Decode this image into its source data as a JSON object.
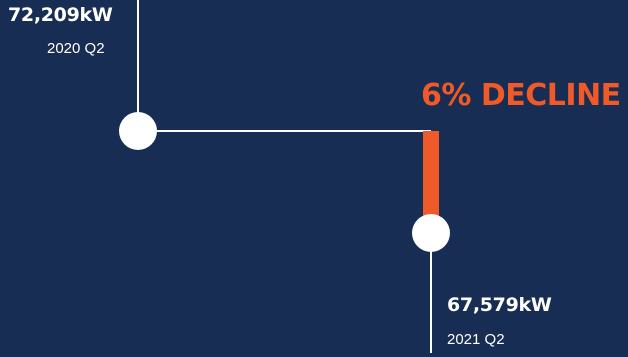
{
  "chart_data": {
    "type": "line",
    "title": "",
    "xlabel": "",
    "ylabel": "",
    "points": [
      {
        "period": "2020 Q2",
        "value": 72209,
        "label": "72,209kW"
      },
      {
        "period": "2021 Q2",
        "value": 67579,
        "label": "67,579kW"
      }
    ],
    "change": {
      "percent": 6,
      "direction": "decline",
      "label": "6% DECLINE"
    },
    "grid": false,
    "legend": "none"
  },
  "colors": {
    "background": "#172d54",
    "line": "#ffffff",
    "marker": "#ffffff",
    "accent": "#f05a28",
    "text": "#ffffff"
  }
}
